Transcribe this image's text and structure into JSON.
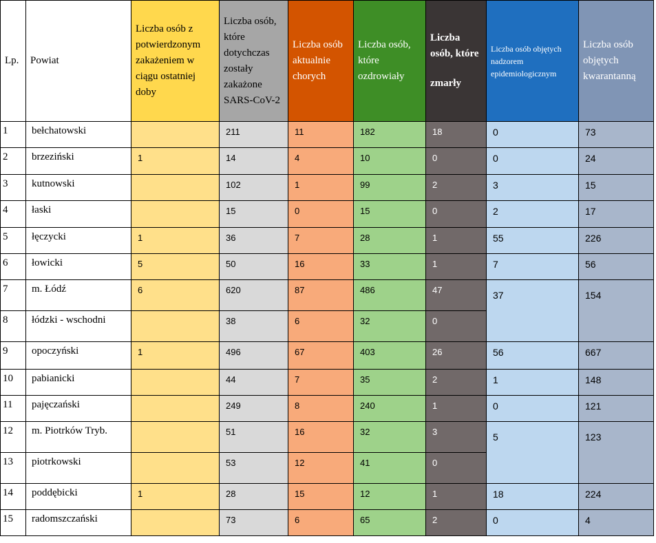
{
  "headers": {
    "lp": "Lp.",
    "powiat": "Powiat",
    "new_cases": "Liczba osób z potwierdzonym zakażeniem w ciągu ostatniej doby",
    "total_infected": "Liczba osób, które dotychczas zostały zakażone SARS-CoV-2",
    "active": "Liczba osób aktualnie chorych",
    "recovered": "Liczba osób, które ozdrowiały",
    "deaths_line1": "Liczba osób, które",
    "deaths_line2": "zmarły",
    "supervision": "Liczba osób objętych nadzorem epidemiologicznym",
    "quarantine": "Liczba osób objętych kwarantanną"
  },
  "rows": [
    {
      "lp": "1",
      "powiat": "bełchatowski",
      "new_cases": "",
      "total": "211",
      "active": "11",
      "recovered": "182",
      "deaths": "18",
      "supervision": "0",
      "quarantine": "73"
    },
    {
      "lp": "2",
      "powiat": "brzeziński",
      "new_cases": "1",
      "total": "14",
      "active": "4",
      "recovered": "10",
      "deaths": "0",
      "supervision": "0",
      "quarantine": "24"
    },
    {
      "lp": "3",
      "powiat": "kutnowski",
      "new_cases": "",
      "total": "102",
      "active": "1",
      "recovered": "99",
      "deaths": "2",
      "supervision": "3",
      "quarantine": "15"
    },
    {
      "lp": "4",
      "powiat": "łaski",
      "new_cases": "",
      "total": "15",
      "active": "0",
      "recovered": "15",
      "deaths": "0",
      "supervision": "2",
      "quarantine": "17"
    },
    {
      "lp": "5",
      "powiat": "łęczycki",
      "new_cases": "1",
      "total": "36",
      "active": "7",
      "recovered": "28",
      "deaths": "1",
      "supervision": "55",
      "quarantine": "226"
    },
    {
      "lp": "6",
      "powiat": "łowicki",
      "new_cases": "5",
      "total": "50",
      "active": "16",
      "recovered": "33",
      "deaths": "1",
      "supervision": "7",
      "quarantine": "56"
    },
    {
      "lp": "7",
      "powiat": "m. Łódź",
      "new_cases": "6",
      "total": "620",
      "active": "87",
      "recovered": "486",
      "deaths": "47",
      "supervision": "37",
      "quarantine": "154"
    },
    {
      "lp": "8",
      "powiat": "łódzki - wschodni",
      "new_cases": "",
      "total": "38",
      "active": "6",
      "recovered": "32",
      "deaths": "0"
    },
    {
      "lp": "9",
      "powiat": "opoczyński",
      "new_cases": "1",
      "total": "496",
      "active": "67",
      "recovered": "403",
      "deaths": "26",
      "supervision": "56",
      "quarantine": "667"
    },
    {
      "lp": "10",
      "powiat": "pabianicki",
      "new_cases": "",
      "total": "44",
      "active": "7",
      "recovered": "35",
      "deaths": "2",
      "supervision": "1",
      "quarantine": "148"
    },
    {
      "lp": "11",
      "powiat": "pajęczański",
      "new_cases": "",
      "total": "249",
      "active": "8",
      "recovered": "240",
      "deaths": "1",
      "supervision": "0",
      "quarantine": "121"
    },
    {
      "lp": "12",
      "powiat": "m. Piotrków Tryb.",
      "new_cases": "",
      "total": "51",
      "active": "16",
      "recovered": "32",
      "deaths": "3",
      "supervision": "5",
      "quarantine": "123"
    },
    {
      "lp": "13",
      "powiat": "piotrkowski",
      "new_cases": "",
      "total": "53",
      "active": "12",
      "recovered": "41",
      "deaths": "0"
    },
    {
      "lp": "14",
      "powiat": "poddębicki",
      "new_cases": "1",
      "total": "28",
      "active": "15",
      "recovered": "12",
      "deaths": "1",
      "supervision": "18",
      "quarantine": "224"
    },
    {
      "lp": "15",
      "powiat": "radomszczański",
      "new_cases": "",
      "total": "73",
      "active": "6",
      "recovered": "65",
      "deaths": "2",
      "supervision": "0",
      "quarantine": "4"
    }
  ],
  "colors": {
    "yellow_header": "#ffd84d",
    "grey_header": "#a6a6a6",
    "orange_header": "#d35400",
    "green_header": "#3e8e26",
    "dark_header": "#3a3535",
    "blue_header": "#1f6fbf",
    "slate_header": "#8095b5"
  }
}
